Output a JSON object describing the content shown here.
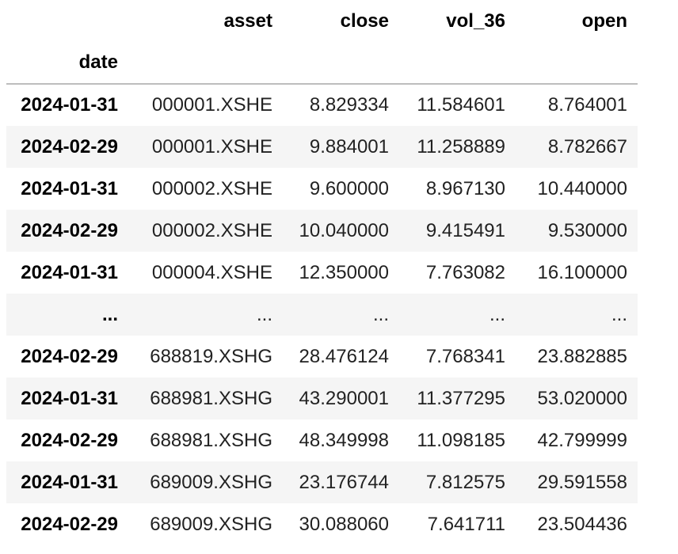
{
  "columns": [
    "asset",
    "close",
    "vol_36",
    "open"
  ],
  "index_name": "date",
  "rows": [
    {
      "date": "2024-01-31",
      "asset": "000001.XSHE",
      "close": "8.829334",
      "vol_36": "11.584601",
      "open": "8.764001"
    },
    {
      "date": "2024-02-29",
      "asset": "000001.XSHE",
      "close": "9.884001",
      "vol_36": "11.258889",
      "open": "8.782667"
    },
    {
      "date": "2024-01-31",
      "asset": "000002.XSHE",
      "close": "9.600000",
      "vol_36": "8.967130",
      "open": "10.440000"
    },
    {
      "date": "2024-02-29",
      "asset": "000002.XSHE",
      "close": "10.040000",
      "vol_36": "9.415491",
      "open": "9.530000"
    },
    {
      "date": "2024-01-31",
      "asset": "000004.XSHE",
      "close": "12.350000",
      "vol_36": "7.763082",
      "open": "16.100000"
    },
    {
      "date": "...",
      "asset": "...",
      "close": "...",
      "vol_36": "...",
      "open": "..."
    },
    {
      "date": "2024-02-29",
      "asset": "688819.XSHG",
      "close": "28.476124",
      "vol_36": "7.768341",
      "open": "23.882885"
    },
    {
      "date": "2024-01-31",
      "asset": "688981.XSHG",
      "close": "43.290001",
      "vol_36": "11.377295",
      "open": "53.020000"
    },
    {
      "date": "2024-02-29",
      "asset": "688981.XSHG",
      "close": "48.349998",
      "vol_36": "11.098185",
      "open": "42.799999"
    },
    {
      "date": "2024-01-31",
      "asset": "689009.XSHG",
      "close": "23.176744",
      "vol_36": "7.812575",
      "open": "29.591558"
    },
    {
      "date": "2024-02-29",
      "asset": "689009.XSHG",
      "close": "30.088060",
      "vol_36": "7.641711",
      "open": "23.504436"
    }
  ]
}
